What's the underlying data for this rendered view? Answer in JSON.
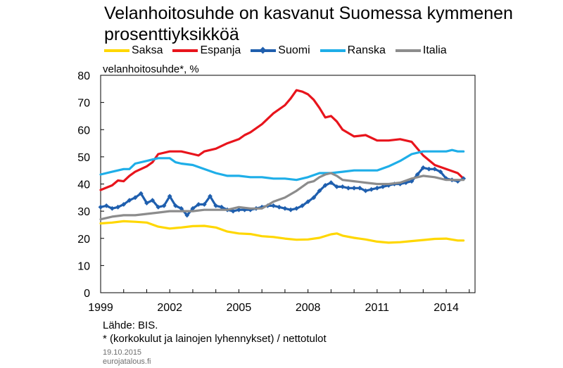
{
  "chart_data": {
    "type": "line",
    "title": "Velanhoitosuhde on kasvanut Suomessa kymmenen prosenttiyksikköä",
    "ylabel": "velanhoitosuhde*,  %",
    "xlabel": "",
    "ylim": [
      0,
      80
    ],
    "yticks": [
      "0",
      "10",
      "20",
      "30",
      "40",
      "50",
      "60",
      "70",
      "80"
    ],
    "xlim": [
      1999.0,
      2015.25
    ],
    "xticks": [
      "1999",
      "2002",
      "2005",
      "2008",
      "2011",
      "2014"
    ],
    "grid": false,
    "legend_position": "top",
    "series": [
      {
        "name": "Saksa",
        "color": "#ffd700",
        "marker": "none",
        "x": [
          1999.0,
          1999.5,
          2000.0,
          2000.5,
          2001.0,
          2001.5,
          2002.0,
          2002.5,
          2003.0,
          2003.5,
          2004.0,
          2004.5,
          2005.0,
          2005.5,
          2006.0,
          2006.5,
          2007.0,
          2007.5,
          2008.0,
          2008.5,
          2009.0,
          2009.25,
          2009.5,
          2010.0,
          2010.5,
          2011.0,
          2011.5,
          2012.0,
          2012.5,
          2013.0,
          2013.5,
          2014.0,
          2014.5,
          2014.75
        ],
        "y": [
          25.5,
          25.8,
          26.3,
          26.1,
          25.8,
          24.3,
          23.6,
          24.0,
          24.5,
          24.6,
          24.0,
          22.5,
          21.8,
          21.6,
          20.8,
          20.5,
          19.9,
          19.5,
          19.6,
          20.2,
          21.5,
          21.8,
          21.0,
          20.2,
          19.6,
          18.8,
          18.4,
          18.6,
          19.0,
          19.4,
          19.8,
          19.9,
          19.2,
          19.2
        ]
      },
      {
        "name": "Espanja",
        "color": "#e8141c",
        "marker": "none",
        "x": [
          1999.0,
          1999.5,
          1999.75,
          2000.0,
          2000.25,
          2000.5,
          2001.0,
          2001.25,
          2001.5,
          2002.0,
          2002.5,
          2003.0,
          2003.25,
          2003.5,
          2004.0,
          2004.25,
          2004.5,
          2005.0,
          2005.25,
          2005.5,
          2006.0,
          2006.5,
          2007.0,
          2007.25,
          2007.5,
          2007.75,
          2008.0,
          2008.25,
          2008.5,
          2008.75,
          2009.0,
          2009.25,
          2009.5,
          2010.0,
          2010.5,
          2011.0,
          2011.5,
          2012.0,
          2012.25,
          2012.5,
          2013.0,
          2013.5,
          2014.0,
          2014.5,
          2014.75
        ],
        "y": [
          37.8,
          39.5,
          41.3,
          41.0,
          43.0,
          44.5,
          46.5,
          48.0,
          51.0,
          52.0,
          52.0,
          51.0,
          50.5,
          52.0,
          53.0,
          54.0,
          55.0,
          56.5,
          58.0,
          59.0,
          62.0,
          66.0,
          69.0,
          71.5,
          74.5,
          74.0,
          73.0,
          71.0,
          68.0,
          64.5,
          65.0,
          63.0,
          60.0,
          57.5,
          58.0,
          56.0,
          56.0,
          56.5,
          56.0,
          55.5,
          50.5,
          47.0,
          45.5,
          44.0,
          42.0
        ]
      },
      {
        "name": "Suomi",
        "color": "#1f5fae",
        "marker": "diamond",
        "x": [
          1999.0,
          1999.25,
          1999.5,
          1999.75,
          2000.0,
          2000.25,
          2000.5,
          2000.75,
          2001.0,
          2001.25,
          2001.5,
          2001.75,
          2002.0,
          2002.25,
          2002.5,
          2002.75,
          2003.0,
          2003.25,
          2003.5,
          2003.75,
          2004.0,
          2004.25,
          2004.5,
          2004.75,
          2005.0,
          2005.25,
          2005.5,
          2005.75,
          2006.0,
          2006.25,
          2006.5,
          2006.75,
          2007.0,
          2007.25,
          2007.5,
          2007.75,
          2008.0,
          2008.25,
          2008.5,
          2008.75,
          2009.0,
          2009.25,
          2009.5,
          2009.75,
          2010.0,
          2010.25,
          2010.5,
          2010.75,
          2011.0,
          2011.25,
          2011.5,
          2011.75,
          2012.0,
          2012.25,
          2012.5,
          2012.75,
          2013.0,
          2013.25,
          2013.5,
          2013.75,
          2014.0,
          2014.25,
          2014.5,
          2014.75
        ],
        "y": [
          31.5,
          32.0,
          31.0,
          31.5,
          32.5,
          34.0,
          35.0,
          36.5,
          33.0,
          34.0,
          31.5,
          32.0,
          35.5,
          32.0,
          31.0,
          28.5,
          31.0,
          32.5,
          32.5,
          35.5,
          32.0,
          31.5,
          30.5,
          30.0,
          30.5,
          30.5,
          30.5,
          31.0,
          31.5,
          32.0,
          32.0,
          31.5,
          31.0,
          30.5,
          31.0,
          32.0,
          33.5,
          35.0,
          37.5,
          39.5,
          40.5,
          39.0,
          39.0,
          38.5,
          38.5,
          38.5,
          37.5,
          38.0,
          38.5,
          39.0,
          39.5,
          40.0,
          40.0,
          40.5,
          41.0,
          43.5,
          46.0,
          45.5,
          45.5,
          44.5,
          42.0,
          41.5,
          41.0,
          42.0
        ]
      },
      {
        "name": "Ranska",
        "color": "#1eaee8",
        "marker": "none",
        "x": [
          1999.0,
          1999.5,
          2000.0,
          2000.25,
          2000.5,
          2001.0,
          2001.25,
          2001.5,
          2002.0,
          2002.25,
          2002.5,
          2003.0,
          2003.5,
          2004.0,
          2004.5,
          2005.0,
          2005.5,
          2006.0,
          2006.5,
          2007.0,
          2007.5,
          2008.0,
          2008.5,
          2009.0,
          2009.5,
          2010.0,
          2010.5,
          2011.0,
          2011.5,
          2012.0,
          2012.5,
          2013.0,
          2013.5,
          2014.0,
          2014.25,
          2014.5,
          2014.75
        ],
        "y": [
          43.5,
          44.5,
          45.5,
          45.5,
          47.5,
          48.5,
          49.0,
          49.5,
          49.5,
          48.0,
          47.5,
          47.0,
          45.5,
          44.0,
          43.0,
          43.0,
          42.5,
          42.5,
          42.0,
          42.0,
          41.5,
          42.5,
          44.0,
          44.0,
          44.5,
          45.0,
          45.0,
          45.0,
          46.5,
          48.5,
          51.0,
          52.0,
          52.0,
          52.0,
          52.5,
          52.0,
          52.0
        ]
      },
      {
        "name": "Italia",
        "color": "#8c8c8c",
        "marker": "none",
        "x": [
          1999.0,
          1999.5,
          2000.0,
          2000.5,
          2001.0,
          2001.5,
          2002.0,
          2002.5,
          2003.0,
          2003.5,
          2004.0,
          2004.5,
          2005.0,
          2005.5,
          2006.0,
          2006.5,
          2007.0,
          2007.5,
          2008.0,
          2008.25,
          2008.5,
          2008.75,
          2009.0,
          2009.25,
          2009.5,
          2010.0,
          2010.5,
          2011.0,
          2011.5,
          2012.0,
          2012.5,
          2013.0,
          2013.5,
          2014.0,
          2014.5,
          2014.75
        ],
        "y": [
          27.0,
          28.0,
          28.5,
          28.5,
          29.0,
          29.5,
          30.0,
          30.0,
          30.0,
          30.5,
          30.5,
          30.5,
          31.5,
          31.0,
          31.0,
          33.5,
          35.0,
          37.5,
          40.5,
          41.0,
          42.5,
          43.5,
          44.0,
          43.0,
          41.5,
          41.0,
          40.5,
          40.0,
          40.0,
          40.5,
          42.0,
          43.0,
          42.5,
          41.5,
          41.5,
          41.5
        ]
      }
    ]
  },
  "footer": {
    "source": "Lähde: BIS.",
    "note": "* (korkokulut ja lainojen lyhennykset) / nettotulot",
    "date": "19.10.2015",
    "site": "eurojatalous.fi"
  }
}
